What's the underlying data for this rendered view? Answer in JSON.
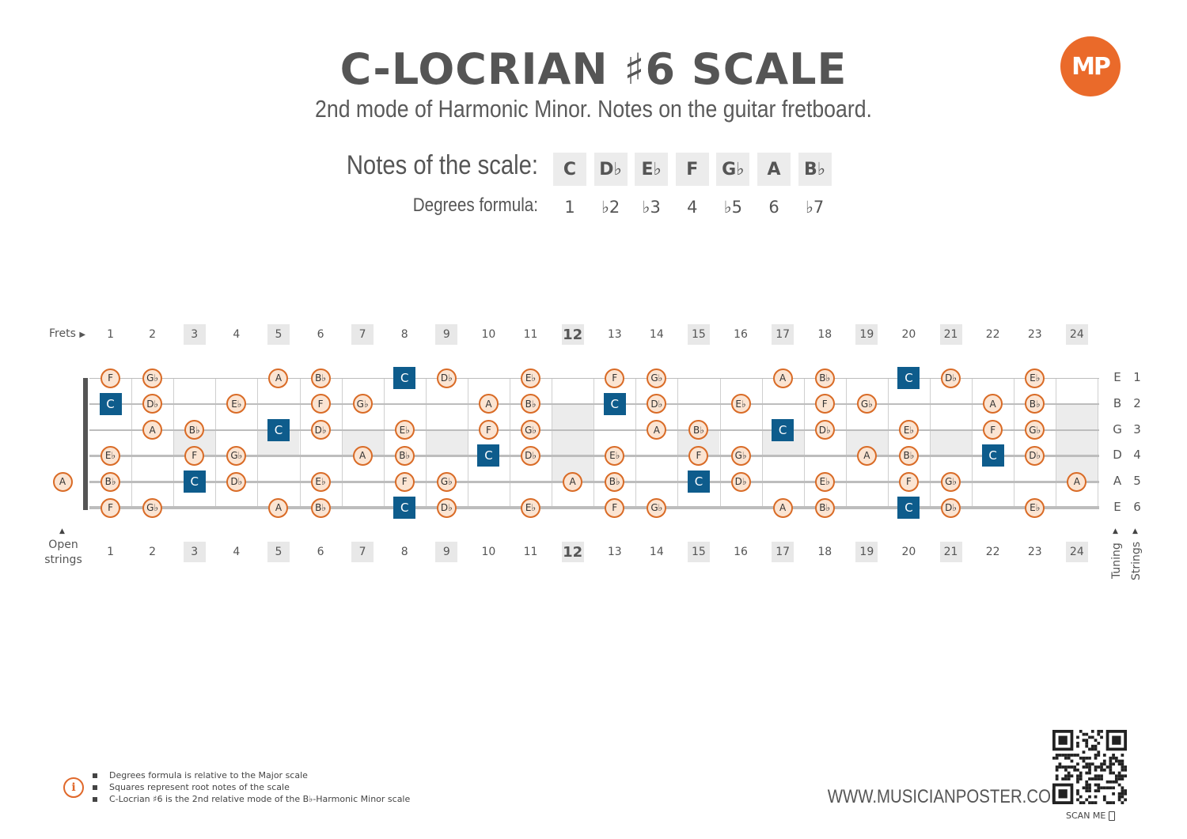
{
  "title": "C-LOCRIAN ♯6 SCALE",
  "subtitle": "2nd mode of Harmonic Minor. Notes on the guitar fretboard.",
  "logo": "MP",
  "scale": {
    "notes_label": "Notes of the scale:",
    "degrees_label": "Degrees formula:",
    "notes": [
      "C",
      "D♭",
      "E♭",
      "F",
      "G♭",
      "A",
      "B♭"
    ],
    "degrees": [
      "1",
      "♭2",
      "♭3",
      "4",
      "♭5",
      "6",
      "♭7"
    ]
  },
  "fretboard": {
    "frets_label": "Frets",
    "open_label_1": "Open",
    "open_label_2": "strings",
    "tuning_label": "Tuning",
    "strings_label": "Strings",
    "fret_numbers": [
      "1",
      "2",
      "3",
      "4",
      "5",
      "6",
      "7",
      "8",
      "9",
      "10",
      "11",
      "12",
      "13",
      "14",
      "15",
      "16",
      "17",
      "18",
      "19",
      "20",
      "21",
      "22",
      "23",
      "24"
    ],
    "marked_frets": [
      "3",
      "5",
      "7",
      "9",
      "12",
      "15",
      "17",
      "19",
      "21",
      "24"
    ],
    "tuning": [
      "E",
      "B",
      "G",
      "D",
      "A",
      "E"
    ],
    "string_numbers": [
      "1",
      "2",
      "3",
      "4",
      "5",
      "6"
    ],
    "root_note": "C",
    "open_notes": [
      "",
      "",
      "",
      "",
      "A",
      ""
    ],
    "strings": [
      [
        "F",
        "G♭",
        "",
        "",
        "A",
        "B♭",
        "",
        "C",
        "D♭",
        "",
        "E♭",
        "",
        "F",
        "G♭",
        "",
        "",
        "A",
        "B♭",
        "",
        "C",
        "D♭",
        "",
        "E♭",
        ""
      ],
      [
        "C",
        "D♭",
        "",
        "E♭",
        "",
        "F",
        "G♭",
        "",
        "",
        "A",
        "B♭",
        "",
        "C",
        "D♭",
        "",
        "E♭",
        "",
        "F",
        "G♭",
        "",
        "",
        "A",
        "B♭",
        ""
      ],
      [
        "",
        "A",
        "B♭",
        "",
        "C",
        "D♭",
        "",
        "E♭",
        "",
        "F",
        "G♭",
        "",
        "",
        "A",
        "B♭",
        "",
        "C",
        "D♭",
        "",
        "E♭",
        "",
        "F",
        "G♭",
        ""
      ],
      [
        "E♭",
        "",
        "F",
        "G♭",
        "",
        "",
        "A",
        "B♭",
        "",
        "C",
        "D♭",
        "",
        "E♭",
        "",
        "F",
        "G♭",
        "",
        "",
        "A",
        "B♭",
        "",
        "C",
        "D♭",
        ""
      ],
      [
        "B♭",
        "",
        "C",
        "D♭",
        "",
        "E♭",
        "",
        "F",
        "G♭",
        "",
        "",
        "A",
        "B♭",
        "",
        "C",
        "D♭",
        "",
        "E♭",
        "",
        "F",
        "G♭",
        "",
        "",
        "A"
      ],
      [
        "F",
        "G♭",
        "",
        "",
        "A",
        "B♭",
        "",
        "C",
        "D♭",
        "",
        "E♭",
        "",
        "F",
        "G♭",
        "",
        "",
        "A",
        "B♭",
        "",
        "C",
        "D♭",
        "",
        "E♭",
        ""
      ]
    ]
  },
  "footnotes": [
    "Degrees formula is relative to the Major scale",
    "Squares represent root notes of the scale",
    "C-Locrian ♯6 is the 2nd relative mode of the B♭-Harmonic Minor scale"
  ],
  "website": "WWW.MUSICIANPOSTER.COM",
  "scan_me": "SCAN ME"
}
